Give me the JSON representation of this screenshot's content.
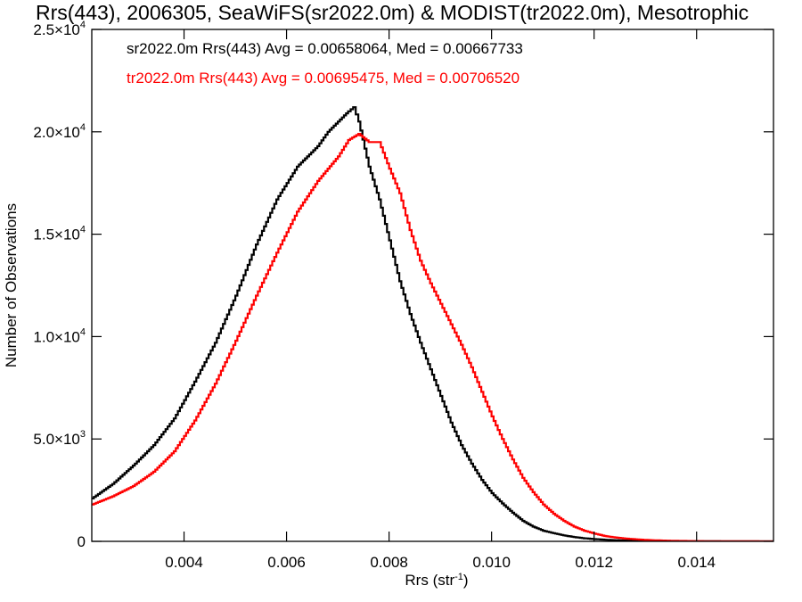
{
  "chart_data": {
    "type": "line",
    "title": "Rrs(443), 2006305, SeaWiFS(sr2022.0m) & MODIST(tr2022.0m), Mesotrophic",
    "xlabel": "Rrs (str",
    "xlabel_sup": "-1",
    "xlabel_end": ")",
    "ylabel": "Number of Observations",
    "xlim": [
      0.0022,
      0.0155
    ],
    "ylim": [
      0,
      25000
    ],
    "grid": false,
    "x_ticks": [
      {
        "value": 0.004,
        "label": "0.004"
      },
      {
        "value": 0.006,
        "label": "0.006"
      },
      {
        "value": 0.008,
        "label": "0.008"
      },
      {
        "value": 0.01,
        "label": "0.010"
      },
      {
        "value": 0.012,
        "label": "0.012"
      },
      {
        "value": 0.014,
        "label": "0.014"
      }
    ],
    "y_ticks": [
      {
        "value": 0,
        "mant": "0",
        "exp": ""
      },
      {
        "value": 5000,
        "mant": "5.0×10",
        "exp": "3"
      },
      {
        "value": 10000,
        "mant": "1.0×10",
        "exp": "4"
      },
      {
        "value": 15000,
        "mant": "1.5×10",
        "exp": "4"
      },
      {
        "value": 20000,
        "mant": "2.0×10",
        "exp": "4"
      },
      {
        "value": 25000,
        "mant": "2.5×10",
        "exp": "4"
      }
    ],
    "annotations": [
      {
        "text": "sr2022.0m Rrs(443) Avg = 0.00658064, Med = 0.00667733",
        "color": "#000000"
      },
      {
        "text": "tr2022.0m Rrs(443) Avg = 0.00695475, Med = 0.00706520",
        "color": "#ff0000"
      }
    ],
    "series": [
      {
        "color": "#000000",
        "x": [
          0.0022,
          0.0026,
          0.003,
          0.0034,
          0.0038,
          0.0042,
          0.0046,
          0.005,
          0.0054,
          0.0058,
          0.0062,
          0.0066,
          0.0068,
          0.007,
          0.0072,
          0.0073,
          0.0074,
          0.0076,
          0.0078,
          0.008,
          0.0082,
          0.0084,
          0.0086,
          0.0088,
          0.009,
          0.0092,
          0.0094,
          0.0096,
          0.0098,
          0.01,
          0.0102,
          0.0104,
          0.0106,
          0.0108,
          0.011,
          0.0112,
          0.0114,
          0.0116,
          0.0118,
          0.012,
          0.0122,
          0.0124,
          0.0126,
          0.0128,
          0.013,
          0.0132,
          0.0134,
          0.0136,
          0.014,
          0.0145,
          0.015,
          0.0155
        ],
        "y": [
          2100,
          2800,
          3700,
          4700,
          6000,
          7800,
          9700,
          12000,
          14500,
          16700,
          18300,
          19300,
          20000,
          20500,
          21000,
          21200,
          20500,
          18300,
          16700,
          14700,
          12700,
          11100,
          9700,
          8400,
          7100,
          5800,
          4700,
          3800,
          3000,
          2350,
          1850,
          1400,
          1000,
          720,
          520,
          400,
          290,
          210,
          150,
          110,
          80,
          58,
          42,
          30,
          22,
          15,
          10,
          7,
          4,
          2,
          1,
          0
        ]
      },
      {
        "color": "#ff0000",
        "x": [
          0.0022,
          0.0026,
          0.003,
          0.0034,
          0.0038,
          0.0042,
          0.0046,
          0.005,
          0.0054,
          0.0058,
          0.0062,
          0.0066,
          0.007,
          0.0072,
          0.0074,
          0.0076,
          0.0078,
          0.008,
          0.0082,
          0.0084,
          0.0086,
          0.0088,
          0.009,
          0.0092,
          0.0094,
          0.0096,
          0.0098,
          0.01,
          0.0102,
          0.0104,
          0.0106,
          0.0108,
          0.011,
          0.0112,
          0.0114,
          0.0116,
          0.0118,
          0.012,
          0.0122,
          0.0124,
          0.0126,
          0.0128,
          0.013,
          0.0132,
          0.0134,
          0.0136,
          0.014,
          0.0145,
          0.015,
          0.0155
        ],
        "y": [
          1800,
          2200,
          2700,
          3400,
          4400,
          5900,
          7700,
          9800,
          12000,
          14100,
          16100,
          17600,
          18800,
          19600,
          19900,
          19500,
          19500,
          18200,
          17000,
          15200,
          13700,
          12600,
          11600,
          10600,
          9600,
          8500,
          7300,
          6100,
          5000,
          4000,
          3100,
          2400,
          1800,
          1350,
          1000,
          720,
          520,
          380,
          260,
          190,
          140,
          100,
          70,
          50,
          35,
          25,
          12,
          6,
          3,
          1
        ]
      }
    ]
  }
}
